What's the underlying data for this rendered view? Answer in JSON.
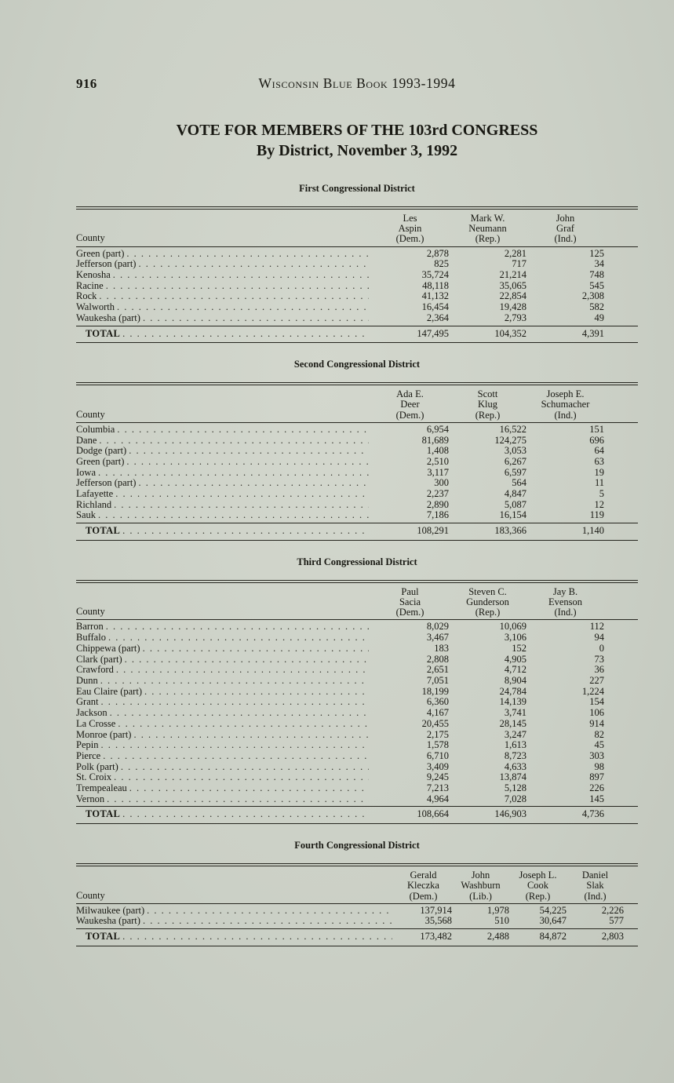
{
  "page": {
    "number": "916",
    "book_title": "Wisconsin Blue Book 1993-1994",
    "title_line1": "VOTE FOR MEMBERS OF THE 103rd CONGRESS",
    "title_line2": "By District, November 3, 1992"
  },
  "districts": [
    {
      "heading": "First Congressional District",
      "county_label": "County",
      "total_label": "TOTAL",
      "candidates": [
        {
          "lines": [
            "Les",
            "Aspin",
            "(Dem.)"
          ]
        },
        {
          "lines": [
            "Mark W.",
            "Neumann",
            "(Rep.)"
          ]
        },
        {
          "lines": [
            "John",
            "Graf",
            "(Ind.)"
          ]
        }
      ],
      "rows": [
        {
          "county": "Green (part)",
          "values": [
            "2,878",
            "2,281",
            "125"
          ]
        },
        {
          "county": "Jefferson (part)",
          "values": [
            "825",
            "717",
            "34"
          ]
        },
        {
          "county": "Kenosha",
          "values": [
            "35,724",
            "21,214",
            "748"
          ]
        },
        {
          "county": "Racine",
          "values": [
            "48,118",
            "35,065",
            "545"
          ]
        },
        {
          "county": "Rock",
          "values": [
            "41,132",
            "22,854",
            "2,308"
          ]
        },
        {
          "county": "Walworth",
          "values": [
            "16,454",
            "19,428",
            "582"
          ]
        },
        {
          "county": "Waukesha (part)",
          "values": [
            "2,364",
            "2,793",
            "49"
          ]
        }
      ],
      "total": [
        "147,495",
        "104,352",
        "4,391"
      ]
    },
    {
      "heading": "Second Congressional District",
      "county_label": "County",
      "total_label": "TOTAL",
      "candidates": [
        {
          "lines": [
            "Ada E.",
            "Deer",
            "(Dem.)"
          ]
        },
        {
          "lines": [
            "Scott",
            "Klug",
            "(Rep.)"
          ]
        },
        {
          "lines": [
            "Joseph E.",
            "Schumacher",
            "(Ind.)"
          ]
        }
      ],
      "rows": [
        {
          "county": "Columbia",
          "values": [
            "6,954",
            "16,522",
            "151"
          ]
        },
        {
          "county": "Dane",
          "values": [
            "81,689",
            "124,275",
            "696"
          ]
        },
        {
          "county": "Dodge (part)",
          "values": [
            "1,408",
            "3,053",
            "64"
          ]
        },
        {
          "county": "Green (part)",
          "values": [
            "2,510",
            "6,267",
            "63"
          ]
        },
        {
          "county": "Iowa",
          "values": [
            "3,117",
            "6,597",
            "19"
          ]
        },
        {
          "county": "Jefferson (part)",
          "values": [
            "300",
            "564",
            "11"
          ]
        },
        {
          "county": "Lafayette",
          "values": [
            "2,237",
            "4,847",
            "5"
          ]
        },
        {
          "county": "Richland",
          "values": [
            "2,890",
            "5,087",
            "12"
          ]
        },
        {
          "county": "Sauk",
          "values": [
            "7,186",
            "16,154",
            "119"
          ]
        }
      ],
      "total": [
        "108,291",
        "183,366",
        "1,140"
      ]
    },
    {
      "heading": "Third Congressional District",
      "county_label": "County",
      "total_label": "TOTAL",
      "candidates": [
        {
          "lines": [
            "Paul",
            "Sacia",
            "(Dem.)"
          ]
        },
        {
          "lines": [
            "Steven C.",
            "Gunderson",
            "(Rep.)"
          ]
        },
        {
          "lines": [
            "Jay B.",
            "Evenson",
            "(Ind.)"
          ]
        }
      ],
      "rows": [
        {
          "county": "Barron",
          "values": [
            "8,029",
            "10,069",
            "112"
          ]
        },
        {
          "county": "Buffalo",
          "values": [
            "3,467",
            "3,106",
            "94"
          ]
        },
        {
          "county": "Chippewa (part)",
          "values": [
            "183",
            "152",
            "0"
          ]
        },
        {
          "county": "Clark (part)",
          "values": [
            "2,808",
            "4,905",
            "73"
          ]
        },
        {
          "county": "Crawford",
          "values": [
            "2,651",
            "4,712",
            "36"
          ]
        },
        {
          "county": "Dunn",
          "values": [
            "7,051",
            "8,904",
            "227"
          ]
        },
        {
          "county": "Eau Claire (part)",
          "values": [
            "18,199",
            "24,784",
            "1,224"
          ]
        },
        {
          "county": "Grant",
          "values": [
            "6,360",
            "14,139",
            "154"
          ]
        },
        {
          "county": "Jackson",
          "values": [
            "4,167",
            "3,741",
            "106"
          ]
        },
        {
          "county": "La Crosse",
          "values": [
            "20,455",
            "28,145",
            "914"
          ]
        },
        {
          "county": "Monroe (part)",
          "values": [
            "2,175",
            "3,247",
            "82"
          ]
        },
        {
          "county": "Pepin",
          "values": [
            "1,578",
            "1,613",
            "45"
          ]
        },
        {
          "county": "Pierce",
          "values": [
            "6,710",
            "8,723",
            "303"
          ]
        },
        {
          "county": "Polk (part)",
          "values": [
            "3,409",
            "4,633",
            "98"
          ]
        },
        {
          "county": "St. Croix",
          "values": [
            "9,245",
            "13,874",
            "897"
          ]
        },
        {
          "county": "Trempealeau",
          "values": [
            "7,213",
            "5,128",
            "226"
          ]
        },
        {
          "county": "Vernon",
          "values": [
            "4,964",
            "7,028",
            "145"
          ]
        }
      ],
      "total": [
        "108,664",
        "146,903",
        "4,736"
      ]
    },
    {
      "heading": "Fourth Congressional District",
      "county_label": "County",
      "total_label": "TOTAL",
      "candidates": [
        {
          "lines": [
            "Gerald",
            "Kleczka",
            "(Dem.)"
          ]
        },
        {
          "lines": [
            "John",
            "Washburn",
            "(Lib.)"
          ]
        },
        {
          "lines": [
            "Joseph L.",
            "Cook",
            "(Rep.)"
          ]
        },
        {
          "lines": [
            "Daniel",
            "Slak",
            "(Ind.)"
          ]
        }
      ],
      "rows": [
        {
          "county": "Milwaukee (part)",
          "values": [
            "137,914",
            "1,978",
            "54,225",
            "2,226"
          ]
        },
        {
          "county": "Waukesha (part)",
          "values": [
            "35,568",
            "510",
            "30,647",
            "577"
          ]
        }
      ],
      "total": [
        "173,482",
        "2,488",
        "84,872",
        "2,803"
      ]
    }
  ]
}
